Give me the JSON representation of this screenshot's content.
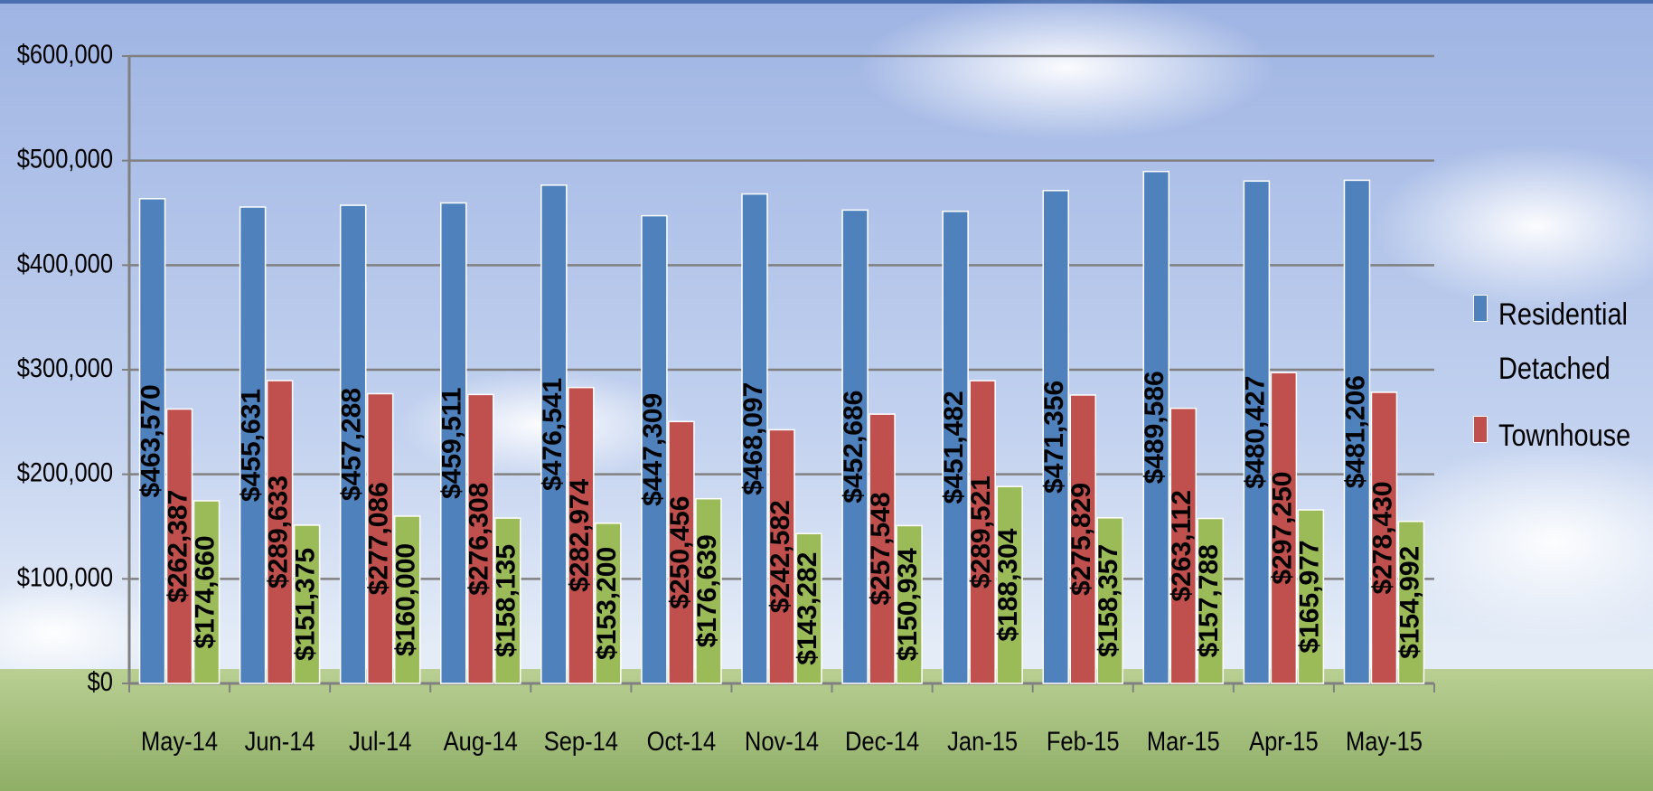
{
  "chart_data": {
    "type": "bar",
    "categories": [
      "May-14",
      "Jun-14",
      "Jul-14",
      "Aug-14",
      "Sep-14",
      "Oct-14",
      "Nov-14",
      "Dec-14",
      "Jan-15",
      "Feb-15",
      "Mar-15",
      "Apr-15",
      "May-15"
    ],
    "series": [
      {
        "name": "Residential Detached",
        "color": "#4f81bd",
        "values": [
          463570,
          455631,
          457288,
          459511,
          476541,
          447309,
          468097,
          452686,
          451482,
          471356,
          489586,
          480427,
          481206
        ],
        "value_labels": [
          "$463,570",
          "$455,631",
          "$457,288",
          "$459,511",
          "$476,541",
          "$447,309",
          "$468,097",
          "$452,686",
          "$451,482",
          "$471,356",
          "$489,586",
          "$480,427",
          "$481,206"
        ]
      },
      {
        "name": "Townhouse",
        "color": "#c0504d",
        "values": [
          262387,
          289633,
          277086,
          276308,
          282974,
          250456,
          242582,
          257548,
          289521,
          275829,
          263112,
          297250,
          278430
        ],
        "value_labels": [
          "$262,387",
          "$289,633",
          "$277,086",
          "$276,308",
          "$282,974",
          "$250,456",
          "$242,582",
          "$257,548",
          "$289,521",
          "$275,829",
          "$263,112",
          "$297,250",
          "$278,430"
        ]
      },
      {
        "color": "#9bbb59",
        "values": [
          174660,
          151375,
          160000,
          158135,
          153200,
          176639,
          143282,
          150934,
          188304,
          158357,
          157788,
          165977,
          154992
        ],
        "value_labels": [
          "$174,660",
          "$151,375",
          "$160,000",
          "$158,135",
          "$153,200",
          "$176,639",
          "$143,282",
          "$150,934",
          "$188,304",
          "$158,357",
          "$157,788",
          "$165,977",
          "$154,992"
        ]
      }
    ],
    "ylim": [
      0,
      600000
    ],
    "yticks": [
      {
        "value": 0,
        "label": "$0"
      },
      {
        "value": 100000,
        "label": "$100,000"
      },
      {
        "value": 200000,
        "label": "$200,000"
      },
      {
        "value": 300000,
        "label": "$300,000"
      },
      {
        "value": 400000,
        "label": "$400,000"
      },
      {
        "value": 500000,
        "label": "$500,000"
      },
      {
        "value": 600000,
        "label": "$600,000"
      }
    ],
    "grid": true,
    "legend": "right"
  }
}
